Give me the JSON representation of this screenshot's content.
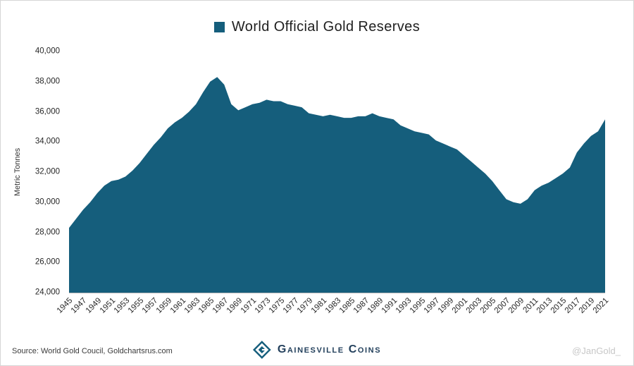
{
  "title": {
    "label": "World Official Gold Reserves",
    "swatch_color": "#155E7C"
  },
  "footer": {
    "source": "Source: World Gold Coucil, Goldchartsrus.com",
    "logo_text": "Gainesville Coins",
    "watermark": "@JanGold_"
  },
  "chart_data": {
    "type": "area",
    "title": "World Official Gold Reserves",
    "xlabel": "",
    "ylabel": "Metric Tonnes",
    "xlim": [
      1945,
      2021
    ],
    "ylim": [
      24000,
      40000
    ],
    "grid": false,
    "legend_position": "top-center",
    "fill_color": "#155E7C",
    "yticks": [
      {
        "value": 24000,
        "label": "24,000"
      },
      {
        "value": 26000,
        "label": "26,000"
      },
      {
        "value": 28000,
        "label": "28,000"
      },
      {
        "value": 30000,
        "label": "30,000"
      },
      {
        "value": 32000,
        "label": "32,000"
      },
      {
        "value": 34000,
        "label": "34,000"
      },
      {
        "value": 36000,
        "label": "36,000"
      },
      {
        "value": 38000,
        "label": "38,000"
      },
      {
        "value": 40000,
        "label": "40,000"
      }
    ],
    "xtick_labels": [
      "1945",
      "1947",
      "1949",
      "1951",
      "1953",
      "1955",
      "1957",
      "1959",
      "1961",
      "1963",
      "1965",
      "1967",
      "1969",
      "1971",
      "1973",
      "1975",
      "1977",
      "1979",
      "1981",
      "1983",
      "1985",
      "1987",
      "1989",
      "1991",
      "1993",
      "1995",
      "1997",
      "1999",
      "2001",
      "2003",
      "2005",
      "2007",
      "2009",
      "2011",
      "2013",
      "2015",
      "2017",
      "2019",
      "2021"
    ],
    "series": [
      {
        "name": "World Official Gold Reserves",
        "x_start": 1945,
        "x_step": 1,
        "values": [
          28300,
          28900,
          29500,
          30000,
          30600,
          31100,
          31400,
          31500,
          31700,
          32100,
          32600,
          33200,
          33800,
          34300,
          34900,
          35300,
          35600,
          36000,
          36500,
          37300,
          38000,
          38300,
          37800,
          36500,
          36100,
          36300,
          36500,
          36600,
          36800,
          36700,
          36700,
          36500,
          36400,
          36300,
          35900,
          35800,
          35700,
          35800,
          35700,
          35600,
          35600,
          35700,
          35700,
          35900,
          35700,
          35600,
          35500,
          35100,
          34900,
          34700,
          34600,
          34500,
          34100,
          33900,
          33700,
          33500,
          33100,
          32700,
          32300,
          31900,
          31400,
          30800,
          30200,
          30000,
          29900,
          30200,
          30800,
          31100,
          31300,
          31600,
          31900,
          32300,
          33300,
          33900,
          34400,
          34700,
          35500
        ]
      }
    ]
  }
}
